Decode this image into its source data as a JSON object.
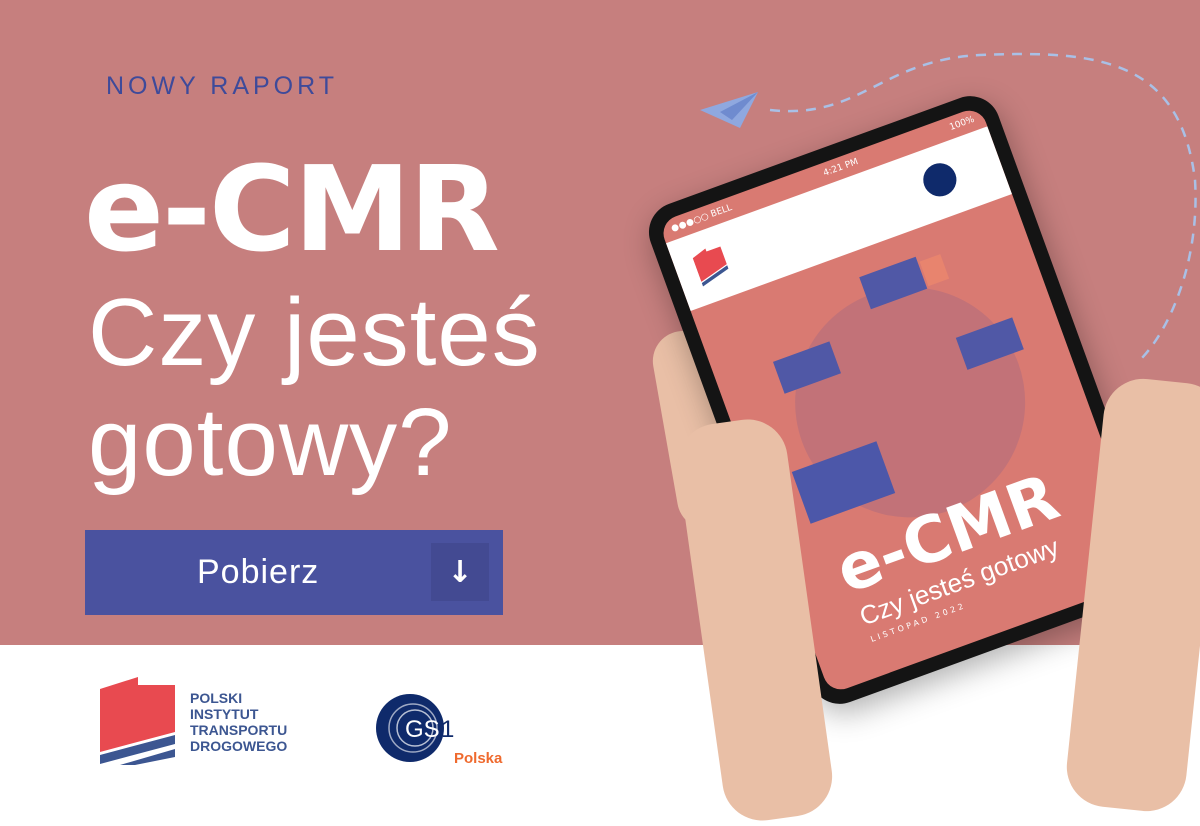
{
  "kicker": "NOWY RAPORT",
  "headline": "e-CMR",
  "subline1": "Czy jesteś",
  "subline2": "gotowy?",
  "cta": {
    "label": "Pobierz",
    "icon": "arrow-down-icon"
  },
  "logos": {
    "pitd": [
      "POLSKI",
      "INSTYTUT",
      "TRANSPORTU",
      "DROGOWEGO"
    ],
    "gs1": {
      "mark": "GS1",
      "region": "Polska"
    }
  },
  "tablet": {
    "status": {
      "carrier": "●●●○○ BELL",
      "time": "4:21 PM",
      "battery": "100%"
    },
    "cover_title": "e-CMR",
    "cover_subtitle": "Czy jesteś gotowy",
    "cover_date": "LISTOPAD 2022"
  },
  "colors": {
    "background": "#c67f7e",
    "accent": "#4a529f",
    "kicker": "#3e4a9a",
    "gs1_orange": "#ef6a2e"
  }
}
